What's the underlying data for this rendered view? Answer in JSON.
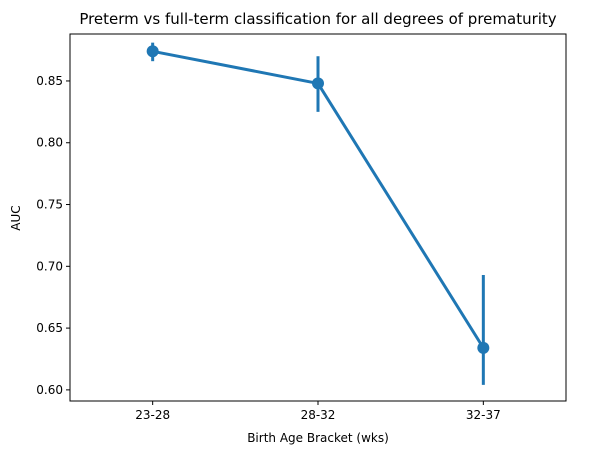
{
  "chart_data": {
    "type": "line",
    "title": "Preterm vs full-term classification for all degrees of prematurity",
    "xlabel": "Birth Age Bracket (wks)",
    "ylabel": "AUC",
    "categories": [
      "23-28",
      "28-32",
      "32-37"
    ],
    "series": [
      {
        "values": [
          0.874,
          0.848,
          0.634
        ],
        "error_low": [
          0.866,
          0.825,
          0.604
        ],
        "error_high": [
          0.881,
          0.87,
          0.693
        ],
        "color": "#1f77b4"
      }
    ],
    "ylim": [
      0.591,
      0.888
    ],
    "yticks": [
      0.6,
      0.65,
      0.7,
      0.75,
      0.8,
      0.85
    ],
    "ytick_labels": [
      "0.60",
      "0.65",
      "0.70",
      "0.75",
      "0.80",
      "0.85"
    ],
    "xlim": [
      -0.5,
      2.5
    ],
    "grid": false,
    "legend": "none"
  }
}
